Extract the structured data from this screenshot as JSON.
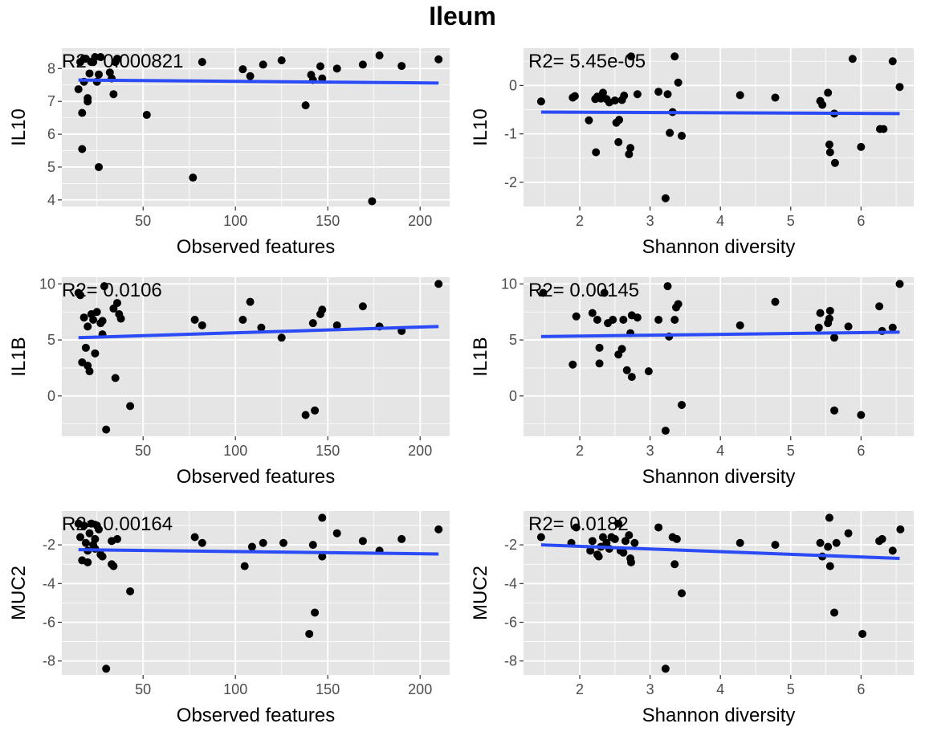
{
  "title": "Ileum",
  "colors": {
    "panel_bg": "#e5e5e5",
    "grid": "#ffffff",
    "point": "#000000",
    "fit_line": "#2a4bf5",
    "tick_text": "#4d4d4d"
  },
  "chart_data": [
    {
      "type": "scatter",
      "xlabel": "Observed features",
      "ylabel": "IL10",
      "annotation": "R2= 0.000821",
      "xlim": [
        6,
        216
      ],
      "ylim": [
        3.8,
        8.62
      ],
      "xticks": [
        50,
        100,
        150,
        200
      ],
      "yticks": [
        4,
        5,
        6,
        7,
        8
      ],
      "fit": [
        [
          15,
          7.65
        ],
        [
          210,
          7.56
        ]
      ],
      "points": [
        [
          15,
          7.37
        ],
        [
          16,
          8.2
        ],
        [
          17,
          6.65
        ],
        [
          17,
          5.55
        ],
        [
          18,
          7.6
        ],
        [
          18,
          8.3
        ],
        [
          19,
          8.3
        ],
        [
          20,
          7.0
        ],
        [
          20,
          7.1
        ],
        [
          21,
          7.85
        ],
        [
          22,
          8.2
        ],
        [
          23,
          8.2
        ],
        [
          24,
          8.35
        ],
        [
          25,
          7.6
        ],
        [
          26,
          7.82
        ],
        [
          26,
          5.0
        ],
        [
          27,
          8.35
        ],
        [
          32,
          7.88
        ],
        [
          33,
          7.7
        ],
        [
          34,
          7.22
        ],
        [
          35,
          8.2
        ],
        [
          36,
          8.3
        ],
        [
          52,
          6.59
        ],
        [
          77,
          4.68
        ],
        [
          82,
          8.2
        ],
        [
          104,
          7.98
        ],
        [
          108,
          7.77
        ],
        [
          115,
          8.12
        ],
        [
          125,
          8.25
        ],
        [
          138,
          6.88
        ],
        [
          141,
          7.81
        ],
        [
          142,
          7.65
        ],
        [
          146,
          8.07
        ],
        [
          147,
          7.7
        ],
        [
          155,
          8.0
        ],
        [
          169,
          8.12
        ],
        [
          174,
          3.96
        ],
        [
          178,
          8.4
        ],
        [
          190,
          8.08
        ],
        [
          210,
          8.28
        ]
      ]
    },
    {
      "type": "scatter",
      "xlabel": "Shannon diversity",
      "ylabel": "IL10",
      "annotation": "R2= 5.45e-05",
      "xlim": [
        1.2,
        6.75
      ],
      "ylim": [
        -2.5,
        0.77
      ],
      "xticks": [
        2,
        3,
        4,
        5,
        6
      ],
      "yticks": [
        -2,
        -1,
        0
      ],
      "fit": [
        [
          1.45,
          -0.55
        ],
        [
          6.55,
          -0.58
        ]
      ],
      "points": [
        [
          1.45,
          -0.33
        ],
        [
          1.9,
          -0.25
        ],
        [
          1.93,
          -0.22
        ],
        [
          2.13,
          -0.72
        ],
        [
          2.22,
          -0.28
        ],
        [
          2.23,
          -1.38
        ],
        [
          2.25,
          -0.23
        ],
        [
          2.3,
          -0.27
        ],
        [
          2.33,
          -0.15
        ],
        [
          2.38,
          -0.28
        ],
        [
          2.42,
          -0.35
        ],
        [
          2.5,
          -0.31
        ],
        [
          2.52,
          -0.77
        ],
        [
          2.55,
          -1.17
        ],
        [
          2.56,
          -0.71
        ],
        [
          2.6,
          -0.3
        ],
        [
          2.63,
          -0.21
        ],
        [
          2.7,
          -1.42
        ],
        [
          2.72,
          -1.29
        ],
        [
          2.73,
          0.6
        ],
        [
          2.82,
          -0.18
        ],
        [
          3.12,
          -0.13
        ],
        [
          3.22,
          -2.33
        ],
        [
          3.25,
          -0.18
        ],
        [
          3.28,
          -0.98
        ],
        [
          3.32,
          -0.55
        ],
        [
          3.35,
          0.6
        ],
        [
          3.4,
          0.06
        ],
        [
          3.45,
          -1.04
        ],
        [
          4.28,
          -0.2
        ],
        [
          4.78,
          -0.25
        ],
        [
          5.42,
          -0.32
        ],
        [
          5.45,
          -0.4
        ],
        [
          5.53,
          -0.15
        ],
        [
          5.55,
          -1.22
        ],
        [
          5.56,
          -1.38
        ],
        [
          5.62,
          -0.58
        ],
        [
          5.63,
          -1.6
        ],
        [
          6.0,
          -1.27
        ],
        [
          6.27,
          -0.9
        ],
        [
          6.32,
          -0.9
        ],
        [
          5.88,
          0.55
        ],
        [
          6.45,
          0.5
        ],
        [
          6.55,
          -0.03
        ]
      ]
    },
    {
      "type": "scatter",
      "xlabel": "Observed features",
      "ylabel": "IL1B",
      "annotation": "R2= 0.0106",
      "xlim": [
        6,
        216
      ],
      "ylim": [
        -3.6,
        10.6
      ],
      "xticks": [
        50,
        100,
        150,
        200
      ],
      "yticks": [
        0,
        5,
        10
      ],
      "fit": [
        [
          15,
          5.2
        ],
        [
          210,
          6.2
        ]
      ],
      "points": [
        [
          15,
          9.2
        ],
        [
          16,
          9.0
        ],
        [
          17,
          3.0
        ],
        [
          18,
          7.0
        ],
        [
          19,
          4.3
        ],
        [
          20,
          6.2
        ],
        [
          20,
          2.7
        ],
        [
          21,
          2.2
        ],
        [
          22,
          7.3
        ],
        [
          23,
          6.8
        ],
        [
          24,
          3.8
        ],
        [
          25,
          7.5
        ],
        [
          27,
          6.5
        ],
        [
          28,
          5.5
        ],
        [
          28,
          6.7
        ],
        [
          29,
          9.8
        ],
        [
          30,
          -3.0
        ],
        [
          34,
          7.8
        ],
        [
          35,
          1.6
        ],
        [
          36,
          8.3
        ],
        [
          37,
          7.3
        ],
        [
          38,
          6.9
        ],
        [
          43,
          -0.9
        ],
        [
          78,
          6.8
        ],
        [
          82,
          6.3
        ],
        [
          104,
          6.8
        ],
        [
          108,
          8.4
        ],
        [
          114,
          6.1
        ],
        [
          125,
          5.2
        ],
        [
          138,
          -1.7
        ],
        [
          142,
          6.5
        ],
        [
          143,
          -1.3
        ],
        [
          146,
          7.3
        ],
        [
          147,
          7.7
        ],
        [
          155,
          6.3
        ],
        [
          169,
          8.0
        ],
        [
          178,
          6.2
        ],
        [
          190,
          5.8
        ],
        [
          210,
          10.0
        ]
      ]
    },
    {
      "type": "scatter",
      "xlabel": "Shannon diversity",
      "ylabel": "IL1B",
      "annotation": "R2= 0.00145",
      "xlim": [
        1.2,
        6.75
      ],
      "ylim": [
        -3.6,
        10.6
      ],
      "xticks": [
        2,
        3,
        4,
        5,
        6
      ],
      "yticks": [
        0,
        5,
        10
      ],
      "fit": [
        [
          1.45,
          5.3
        ],
        [
          6.55,
          5.7
        ]
      ],
      "points": [
        [
          1.48,
          9.2
        ],
        [
          1.9,
          2.8
        ],
        [
          1.95,
          7.1
        ],
        [
          2.18,
          7.4
        ],
        [
          2.25,
          6.8
        ],
        [
          2.28,
          4.3
        ],
        [
          2.28,
          2.9
        ],
        [
          2.35,
          9.2
        ],
        [
          2.4,
          6.5
        ],
        [
          2.47,
          6.8
        ],
        [
          2.55,
          3.7
        ],
        [
          2.6,
          4.2
        ],
        [
          2.62,
          6.8
        ],
        [
          2.67,
          2.3
        ],
        [
          2.72,
          5.6
        ],
        [
          2.74,
          1.7
        ],
        [
          2.74,
          7.2
        ],
        [
          2.82,
          7.0
        ],
        [
          2.98,
          2.2
        ],
        [
          3.12,
          6.8
        ],
        [
          3.22,
          -3.1
        ],
        [
          3.25,
          9.8
        ],
        [
          3.27,
          5.3
        ],
        [
          3.35,
          6.8
        ],
        [
          3.37,
          7.9
        ],
        [
          3.4,
          8.2
        ],
        [
          3.45,
          -0.8
        ],
        [
          4.28,
          6.3
        ],
        [
          4.78,
          8.4
        ],
        [
          5.4,
          6.1
        ],
        [
          5.42,
          7.4
        ],
        [
          5.53,
          6.5
        ],
        [
          5.55,
          6.9
        ],
        [
          5.56,
          7.6
        ],
        [
          5.62,
          -1.3
        ],
        [
          5.62,
          5.2
        ],
        [
          5.82,
          6.2
        ],
        [
          6.0,
          -1.7
        ],
        [
          6.26,
          8.0
        ],
        [
          6.3,
          5.8
        ],
        [
          6.45,
          6.1
        ],
        [
          6.55,
          10.0
        ]
      ]
    },
    {
      "type": "scatter",
      "xlabel": "Observed features",
      "ylabel": "MUC2",
      "annotation": "R2= 0.00164",
      "xlim": [
        6,
        216
      ],
      "ylim": [
        -8.72,
        -0.25
      ],
      "xticks": [
        50,
        100,
        150,
        200
      ],
      "yticks": [
        -8,
        -6,
        -4,
        -2
      ],
      "fit": [
        [
          15,
          -2.25
        ],
        [
          210,
          -2.47
        ]
      ],
      "points": [
        [
          15,
          -0.9
        ],
        [
          16,
          -1.6
        ],
        [
          17,
          -2.8
        ],
        [
          18,
          -1.0
        ],
        [
          19,
          -1.9
        ],
        [
          20,
          -2.3
        ],
        [
          20,
          -2.9
        ],
        [
          21,
          -1.4
        ],
        [
          22,
          -0.9
        ],
        [
          23,
          -2.0
        ],
        [
          24,
          -2.2
        ],
        [
          24,
          -1.7
        ],
        [
          25,
          -1.0
        ],
        [
          26,
          -1.2
        ],
        [
          27,
          -2.5
        ],
        [
          28,
          -2.6
        ],
        [
          30,
          -8.4
        ],
        [
          33,
          -3.0
        ],
        [
          34,
          -3.1
        ],
        [
          33,
          -1.8
        ],
        [
          36,
          -1.7
        ],
        [
          43,
          -4.4
        ],
        [
          78,
          -1.6
        ],
        [
          82,
          -1.9
        ],
        [
          105,
          -3.1
        ],
        [
          109,
          -2.1
        ],
        [
          115,
          -1.9
        ],
        [
          126,
          -1.9
        ],
        [
          140,
          -6.6
        ],
        [
          142,
          -2.0
        ],
        [
          143,
          -5.5
        ],
        [
          147,
          -0.6
        ],
        [
          147,
          -2.6
        ],
        [
          155,
          -1.4
        ],
        [
          169,
          -1.8
        ],
        [
          178,
          -2.3
        ],
        [
          190,
          -1.7
        ],
        [
          210,
          -1.2
        ]
      ]
    },
    {
      "type": "scatter",
      "xlabel": "Shannon diversity",
      "ylabel": "MUC2",
      "annotation": "R2= 0.0182",
      "xlim": [
        1.2,
        6.75
      ],
      "ylim": [
        -8.72,
        -0.25
      ],
      "xticks": [
        2,
        3,
        4,
        5,
        6
      ],
      "yticks": [
        -8,
        -6,
        -4,
        -2
      ],
      "fit": [
        [
          1.45,
          -2.0
        ],
        [
          6.55,
          -2.7
        ]
      ],
      "points": [
        [
          1.45,
          -1.6
        ],
        [
          1.88,
          -1.9
        ],
        [
          1.95,
          -1.1
        ],
        [
          2.15,
          -2.3
        ],
        [
          2.18,
          -1.8
        ],
        [
          2.25,
          -2.5
        ],
        [
          2.27,
          -2.6
        ],
        [
          2.3,
          -2.1
        ],
        [
          2.33,
          -1.6
        ],
        [
          2.38,
          -1.9
        ],
        [
          2.42,
          -2.2
        ],
        [
          2.45,
          -1.6
        ],
        [
          2.5,
          -1.7
        ],
        [
          2.55,
          -0.9
        ],
        [
          2.58,
          -2.3
        ],
        [
          2.62,
          -2.4
        ],
        [
          2.65,
          -1.8
        ],
        [
          2.7,
          -1.5
        ],
        [
          2.72,
          -2.7
        ],
        [
          2.73,
          -2.9
        ],
        [
          2.78,
          -1.9
        ],
        [
          3.12,
          -1.1
        ],
        [
          3.22,
          -8.4
        ],
        [
          3.32,
          -1.6
        ],
        [
          3.35,
          -3.0
        ],
        [
          3.38,
          -1.7
        ],
        [
          3.45,
          -4.5
        ],
        [
          4.28,
          -1.9
        ],
        [
          4.78,
          -2.0
        ],
        [
          5.42,
          -1.9
        ],
        [
          5.45,
          -2.6
        ],
        [
          5.53,
          -2.1
        ],
        [
          5.55,
          -0.6
        ],
        [
          5.56,
          -3.1
        ],
        [
          5.62,
          -5.5
        ],
        [
          5.65,
          -1.9
        ],
        [
          5.82,
          -1.4
        ],
        [
          6.02,
          -6.6
        ],
        [
          6.26,
          -1.8
        ],
        [
          6.3,
          -1.7
        ],
        [
          6.45,
          -2.3
        ],
        [
          6.56,
          -1.2
        ]
      ]
    }
  ]
}
